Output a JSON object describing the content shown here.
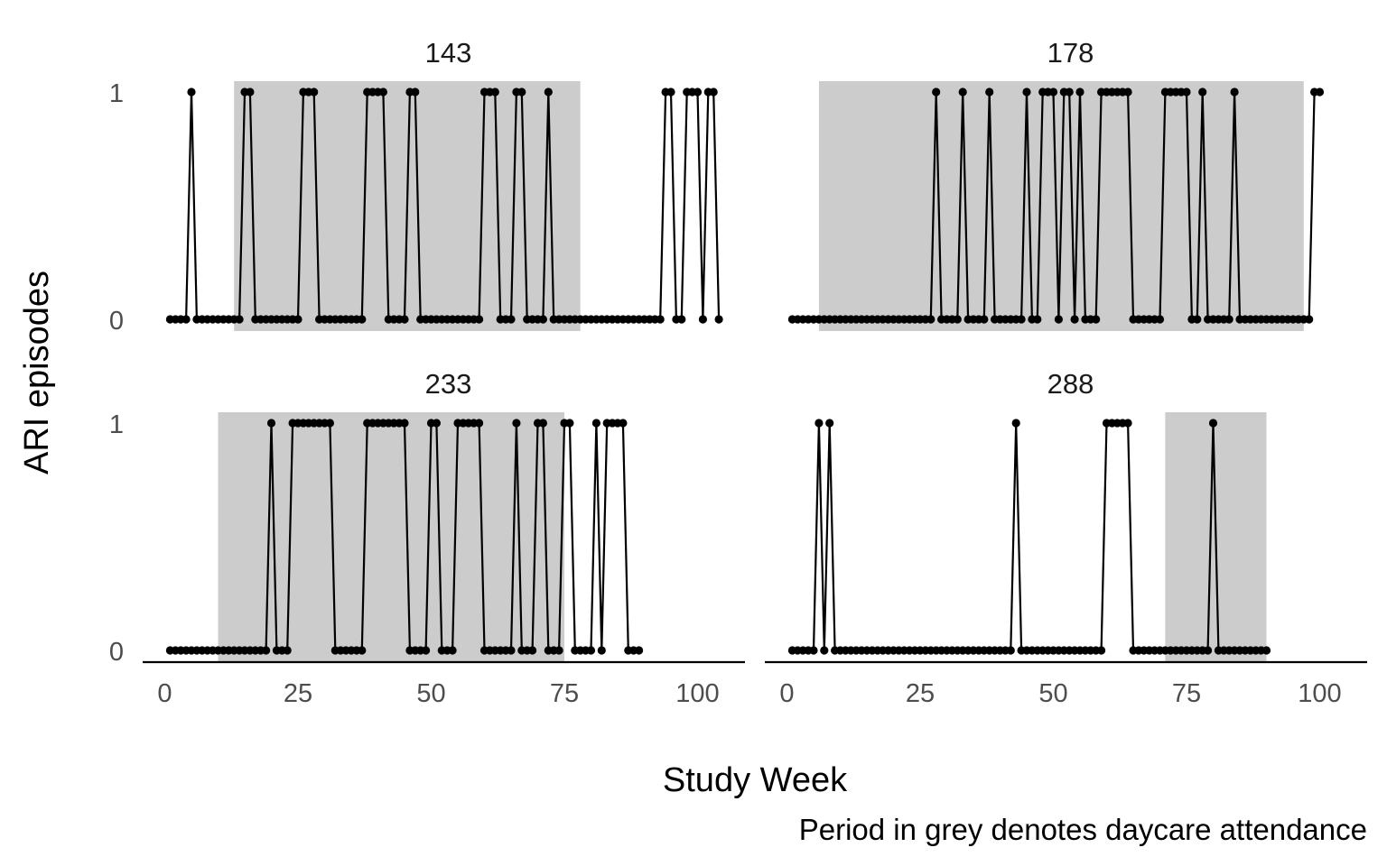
{
  "chart_data": {
    "type": "line",
    "xlabel": "Study Week",
    "ylabel": "ARI episodes",
    "caption": "Period in grey denotes daycare attendance",
    "xlim": [
      0,
      110
    ],
    "ylim": [
      0,
      1
    ],
    "x_ticks": [
      0,
      25,
      50,
      75,
      100
    ],
    "y_ticks": [
      0,
      1
    ],
    "shading_color": "#cccccc",
    "line_color": "#000000",
    "panels": [
      {
        "title": "143",
        "daycare_period": [
          13,
          78
        ],
        "episode_weeks": [
          5,
          15,
          16,
          26,
          27,
          28,
          38,
          39,
          40,
          41,
          46,
          47,
          60,
          61,
          62,
          66,
          67,
          72,
          94,
          95,
          98,
          99,
          100,
          102,
          103
        ],
        "weeks": [
          1,
          104
        ]
      },
      {
        "title": "178",
        "daycare_period": [
          6,
          97
        ],
        "episode_weeks": [
          28,
          33,
          38,
          45,
          48,
          49,
          50,
          52,
          53,
          55,
          59,
          60,
          61,
          62,
          63,
          64,
          71,
          72,
          73,
          74,
          75,
          78,
          84,
          99,
          100
        ],
        "weeks": [
          1,
          100
        ]
      },
      {
        "title": "233",
        "daycare_period": [
          10,
          75
        ],
        "episode_weeks": [
          20,
          24,
          25,
          26,
          27,
          28,
          29,
          30,
          31,
          38,
          39,
          40,
          41,
          42,
          43,
          44,
          45,
          50,
          51,
          55,
          56,
          57,
          58,
          59,
          66,
          70,
          71,
          75,
          76,
          81,
          83,
          84,
          85,
          86
        ],
        "weeks": [
          1,
          89
        ]
      },
      {
        "title": "288",
        "daycare_period": [
          71,
          90
        ],
        "episode_weeks": [
          6,
          8,
          43,
          60,
          61,
          62,
          63,
          64,
          80
        ],
        "weeks": [
          1,
          90
        ]
      }
    ]
  }
}
